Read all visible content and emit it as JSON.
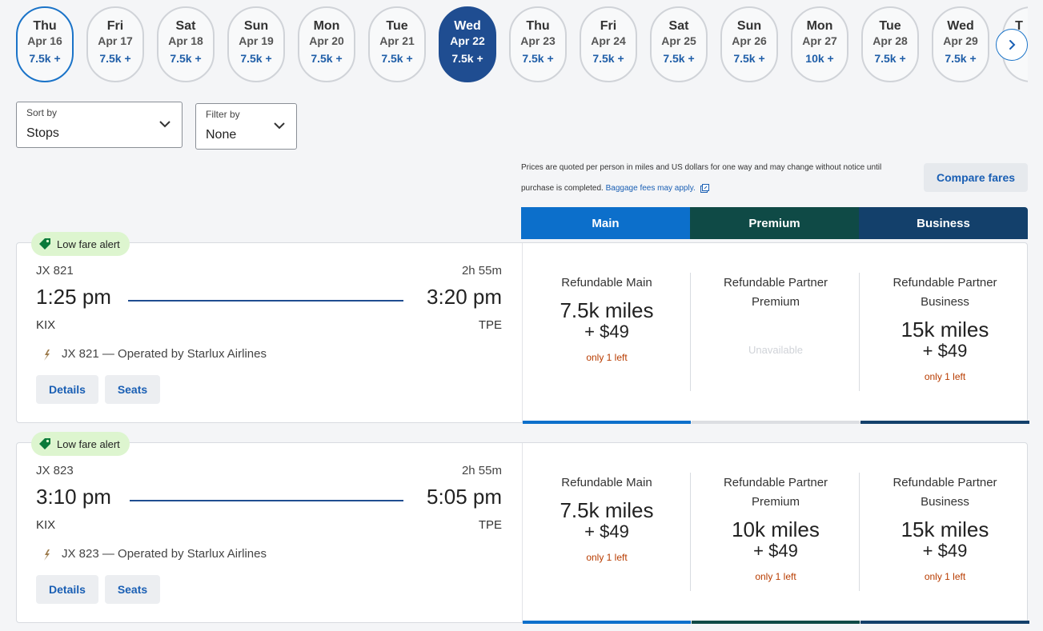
{
  "date_strip": [
    {
      "dow": "Thu",
      "date": "Apr 16",
      "price": "7.5k +",
      "state": "outlined"
    },
    {
      "dow": "Fri",
      "date": "Apr 17",
      "price": "7.5k +",
      "state": ""
    },
    {
      "dow": "Sat",
      "date": "Apr 18",
      "price": "7.5k +",
      "state": ""
    },
    {
      "dow": "Sun",
      "date": "Apr 19",
      "price": "7.5k +",
      "state": ""
    },
    {
      "dow": "Mon",
      "date": "Apr 20",
      "price": "7.5k +",
      "state": ""
    },
    {
      "dow": "Tue",
      "date": "Apr 21",
      "price": "7.5k +",
      "state": ""
    },
    {
      "dow": "Wed",
      "date": "Apr 22",
      "price": "7.5k +",
      "state": "selected"
    },
    {
      "dow": "Thu",
      "date": "Apr 23",
      "price": "7.5k +",
      "state": ""
    },
    {
      "dow": "Fri",
      "date": "Apr 24",
      "price": "7.5k +",
      "state": ""
    },
    {
      "dow": "Sat",
      "date": "Apr 25",
      "price": "7.5k +",
      "state": ""
    },
    {
      "dow": "Sun",
      "date": "Apr 26",
      "price": "7.5k +",
      "state": ""
    },
    {
      "dow": "Mon",
      "date": "Apr 27",
      "price": "10k +",
      "state": ""
    },
    {
      "dow": "Tue",
      "date": "Apr 28",
      "price": "7.5k +",
      "state": ""
    },
    {
      "dow": "Wed",
      "date": "Apr 29",
      "price": "7.5k +",
      "state": ""
    },
    {
      "dow": "T",
      "date": "",
      "price": "",
      "state": "partial"
    }
  ],
  "sort": {
    "label": "Sort by",
    "value": "Stops"
  },
  "filter": {
    "label": "Filter by",
    "value": "None"
  },
  "notice": {
    "line1": "Prices are quoted per person in miles and US dollars for one way and may change without notice until",
    "line2": "purchase is completed.",
    "link": "Baggage fees may apply."
  },
  "compare_fares_label": "Compare fares",
  "cabins": {
    "main": "Main",
    "premium": "Premium",
    "business": "Business"
  },
  "colors": {
    "main": "#0c6fcb",
    "premium": "#0f4a46",
    "business": "#13406b",
    "selected_date": "#1f4d91"
  },
  "flights": [
    {
      "alert": "Low fare alert",
      "number": "JX 821",
      "duration": "2h 55m",
      "depart_time": "1:25 pm",
      "arrive_time": "3:20 pm",
      "origin": "KIX",
      "destination": "TPE",
      "operator": "JX 821 — Operated by Starlux Airlines",
      "details_label": "Details",
      "seats_label": "Seats",
      "fares": [
        {
          "name": "Refundable Main",
          "miles": "7.5k miles",
          "cash": "+ $49",
          "note": "only 1 left",
          "available": true
        },
        {
          "name": "Refundable Partner Premium",
          "miles": "",
          "cash": "",
          "note": "Unavailable",
          "available": false
        },
        {
          "name": "Refundable Partner Business",
          "miles": "15k miles",
          "cash": "+ $49",
          "note": "only 1 left",
          "available": true
        }
      ]
    },
    {
      "alert": "Low fare alert",
      "number": "JX 823",
      "duration": "2h 55m",
      "depart_time": "3:10 pm",
      "arrive_time": "5:05 pm",
      "origin": "KIX",
      "destination": "TPE",
      "operator": "JX 823 — Operated by Starlux Airlines",
      "details_label": "Details",
      "seats_label": "Seats",
      "fares": [
        {
          "name": "Refundable Main",
          "miles": "7.5k miles",
          "cash": "+ $49",
          "note": "only 1 left",
          "available": true
        },
        {
          "name": "Refundable Partner Premium",
          "miles": "10k miles",
          "cash": "+ $49",
          "note": "only 1 left",
          "available": true
        },
        {
          "name": "Refundable Partner Business",
          "miles": "15k miles",
          "cash": "+ $49",
          "note": "only 1 left",
          "available": true
        }
      ]
    }
  ]
}
